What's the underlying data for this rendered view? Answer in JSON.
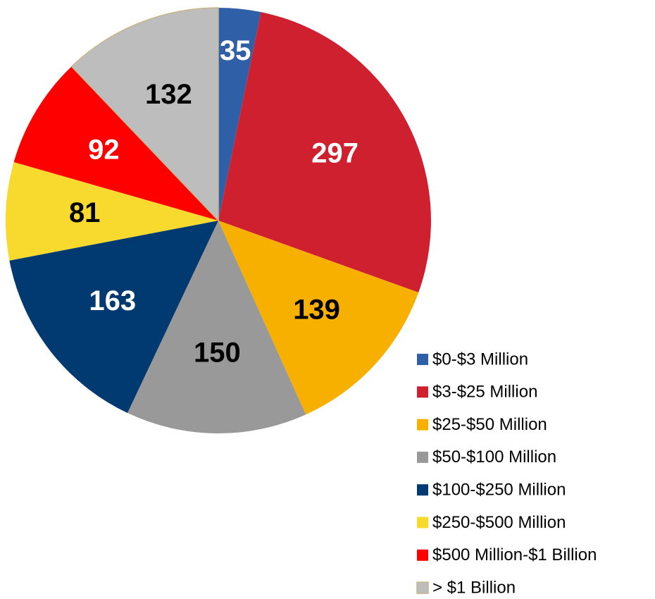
{
  "chart_data": {
    "type": "pie",
    "categories": [
      "$0-$3 Million",
      "$3-$25 Million",
      "$25-$50 Million",
      "$50-$100 Million",
      "$100-$250 Million",
      "$250-$500 Million",
      "$500 Million-$1 Billion",
      "> $1 Billion"
    ],
    "values": [
      35,
      297,
      139,
      150,
      163,
      81,
      92,
      132
    ],
    "colors": [
      "#2f5fa7",
      "#cf2030",
      "#f8b000",
      "#999999",
      "#003a70",
      "#f8d92e",
      "#fe0000",
      "#bdbdbd"
    ],
    "label_colors": [
      "#ffffff",
      "#ffffff",
      "#000000",
      "#000000",
      "#ffffff",
      "#000000",
      "#ffffff",
      "#000000"
    ],
    "legend": "bottom-right"
  }
}
